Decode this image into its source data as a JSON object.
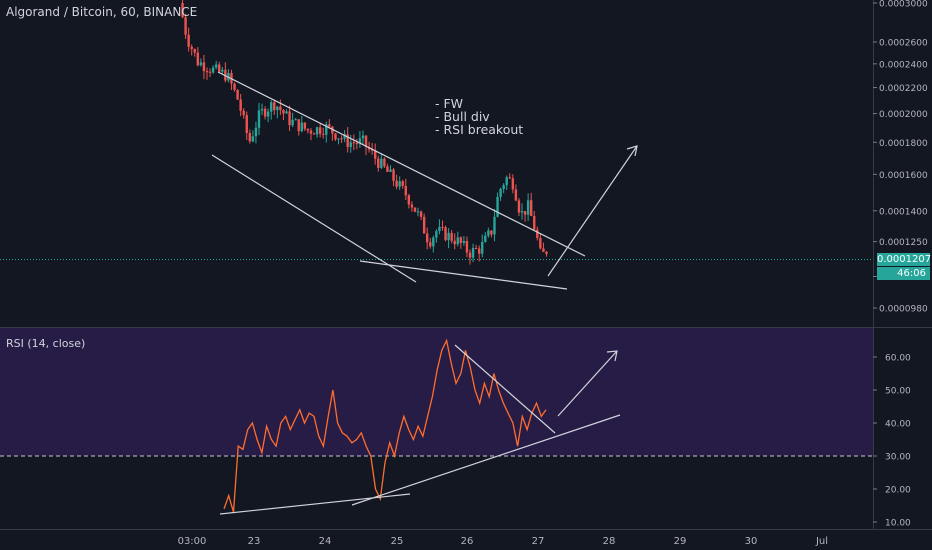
{
  "header": {
    "title": "Algorand / Bitcoin, 60, BINANCE"
  },
  "notes": [
    "- FW",
    "- Bull div",
    "- RSI breakout"
  ],
  "rsi_panel": {
    "label": "RSI (14, close)"
  },
  "colors": {
    "background": "#131722",
    "up": "#26a69a",
    "down": "#ef5350",
    "rsi_line": "#ff6d2e",
    "rsi_band": "#2a1f45",
    "annotation": "#d1d4dc",
    "axis_text": "#b2b5be"
  },
  "chart_data": [
    {
      "type": "candlestick",
      "title": "Algorand / Bitcoin, 60, BINANCE",
      "x_tick_labels": [
        "03:00",
        "23",
        "24",
        "25",
        "26",
        "27",
        "28",
        "29",
        "30",
        "Jul"
      ],
      "y_tick_labels": [
        "0.0003000",
        "0.0002600",
        "0.0002400",
        "0.0002200",
        "0.0002000",
        "0.0001800",
        "0.0001600",
        "0.0001400",
        "0.0001250",
        "0.0001100",
        "0.0000980"
      ],
      "y_scale": "log",
      "ylim": [
        9e-05,
        0.0003
      ],
      "last_price": "0.0001207",
      "countdown": "46:06",
      "approx_close_path": [
        {
          "t": 0.0,
          "v": 0.0003
        },
        {
          "t": 0.02,
          "v": 0.000265
        },
        {
          "t": 0.05,
          "v": 0.000242
        },
        {
          "t": 0.09,
          "v": 0.000235
        },
        {
          "t": 0.13,
          "v": 0.00023
        },
        {
          "t": 0.16,
          "v": 0.00021
        },
        {
          "t": 0.19,
          "v": 0.00018
        },
        {
          "t": 0.22,
          "v": 0.0002
        },
        {
          "t": 0.26,
          "v": 0.000208
        },
        {
          "t": 0.3,
          "v": 0.000195
        },
        {
          "t": 0.35,
          "v": 0.000188
        },
        {
          "t": 0.4,
          "v": 0.00019
        },
        {
          "t": 0.46,
          "v": 0.00018
        },
        {
          "t": 0.5,
          "v": 0.00018
        },
        {
          "t": 0.54,
          "v": 0.000168
        },
        {
          "t": 0.58,
          "v": 0.000158
        },
        {
          "t": 0.62,
          "v": 0.000148
        },
        {
          "t": 0.65,
          "v": 0.000138
        },
        {
          "t": 0.68,
          "v": 0.000125
        },
        {
          "t": 0.7,
          "v": 0.00013
        },
        {
          "t": 0.73,
          "v": 0.000128
        },
        {
          "t": 0.76,
          "v": 0.000125
        },
        {
          "t": 0.79,
          "v": 0.00012
        },
        {
          "t": 0.82,
          "v": 0.000122
        },
        {
          "t": 0.85,
          "v": 0.00013
        },
        {
          "t": 0.87,
          "v": 0.00015
        },
        {
          "t": 0.89,
          "v": 0.000158
        },
        {
          "t": 0.91,
          "v": 0.000155
        },
        {
          "t": 0.93,
          "v": 0.000138
        },
        {
          "t": 0.95,
          "v": 0.000142
        },
        {
          "t": 0.97,
          "v": 0.00013
        },
        {
          "t": 0.985,
          "v": 0.000118
        },
        {
          "t": 1.0,
          "v": 0.000121
        }
      ],
      "annotations": [
        "- FW",
        "- Bull div",
        "- RSI breakout"
      ]
    },
    {
      "type": "line",
      "title": "RSI (14, close)",
      "y_tick_labels": [
        "60.00",
        "50.00",
        "40.00",
        "30.00",
        "20.00",
        "10.00"
      ],
      "ylim": [
        10,
        65
      ],
      "reference_line": 30,
      "band": [
        30,
        70
      ],
      "approx_values": [
        14,
        18,
        13,
        33,
        32,
        38,
        40,
        35,
        31,
        39,
        35,
        33,
        40,
        42,
        38,
        41,
        44,
        40,
        43,
        42,
        36,
        33,
        42,
        50,
        40,
        37,
        36,
        34,
        35,
        37,
        33,
        30,
        20,
        17,
        28,
        34,
        30,
        37,
        42,
        38,
        35,
        39,
        36,
        42,
        48,
        56,
        62,
        65,
        58,
        52,
        55,
        62,
        57,
        50,
        46,
        52,
        48,
        55,
        50,
        46,
        43,
        40,
        33,
        42,
        38,
        43,
        46,
        42,
        44
      ],
      "x_tick_labels": [
        "03:00",
        "23",
        "24",
        "25",
        "26",
        "27",
        "28",
        "29",
        "30",
        "Jul"
      ]
    }
  ]
}
